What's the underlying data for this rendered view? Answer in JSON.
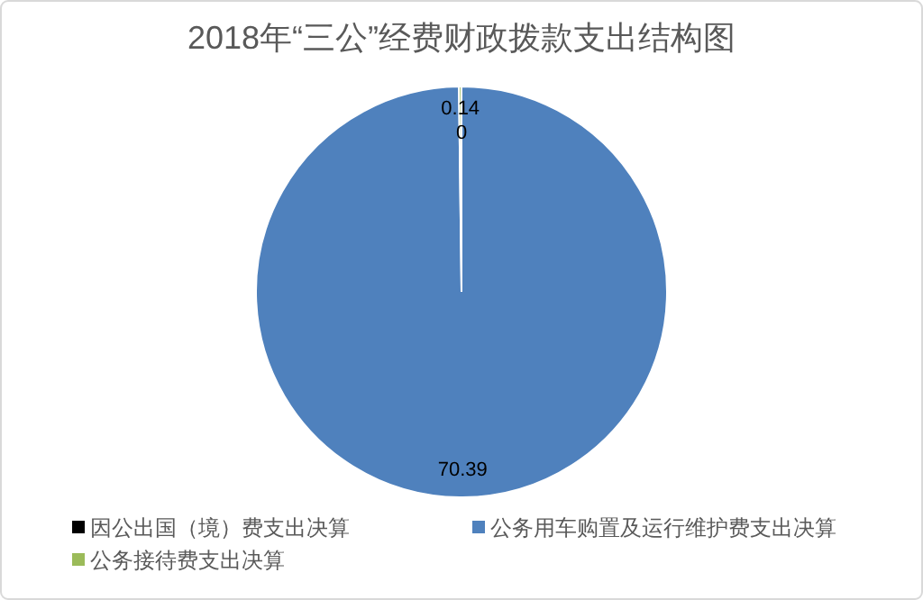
{
  "chart_data": {
    "type": "pie",
    "title": "2018年“三公”经费财政拨款支出结构图",
    "categories": [
      "因公出国（境）费支出决算",
      "公务用车购置及运行维护费支出决算",
      "公务接待费支出决算"
    ],
    "values": [
      0,
      70.39,
      0.14
    ],
    "colors": [
      "#000000",
      "#4f81bd",
      "#9bbb59"
    ],
    "value_labels": [
      "0",
      "70.39",
      "0.14"
    ],
    "legend": "bottom"
  }
}
